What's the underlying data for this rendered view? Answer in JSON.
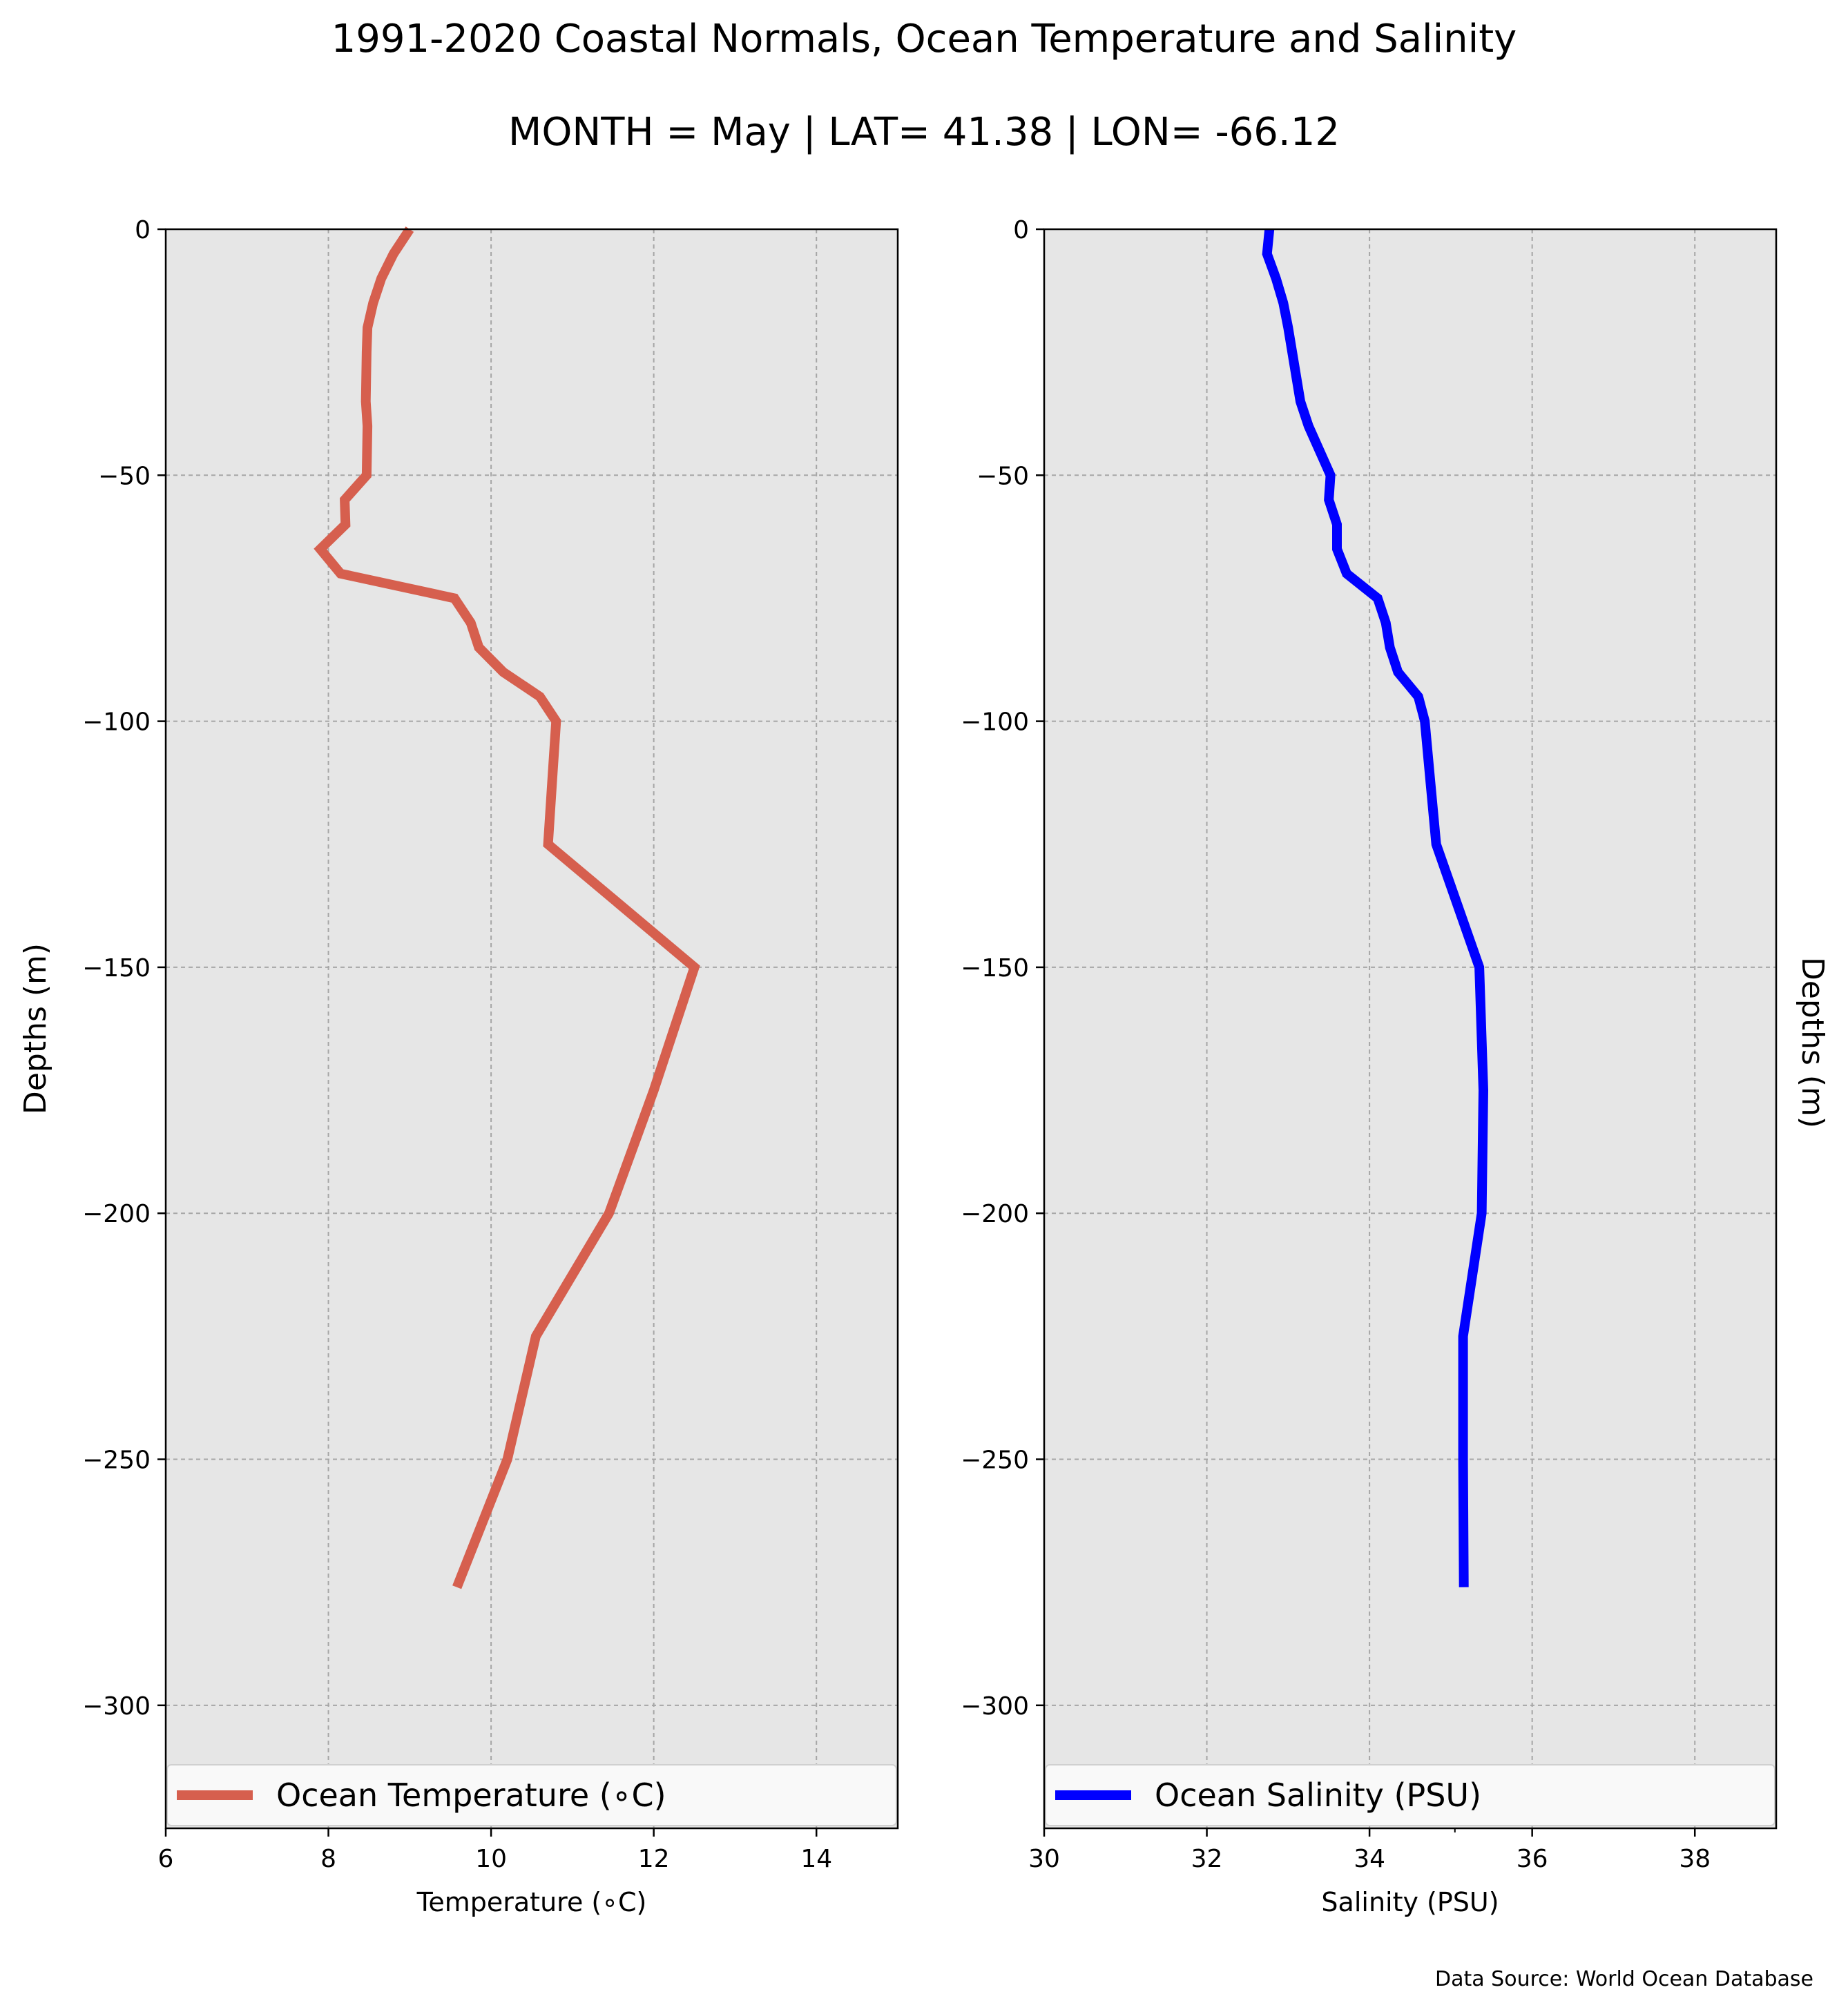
{
  "figure": {
    "title": "1991-2020 Coastal Normals, Ocean Temperature and Salinity",
    "subtitle": "MONTH = May | LAT= 41.38 | LON= -66.12",
    "source": "Data Source: World Ocean Database",
    "colors": {
      "background": "#ffffff",
      "plot_background": "#e6e6e6",
      "grid": "#a6a6a6",
      "temperature": "#d65f4e",
      "salinity": "#0000ff"
    }
  },
  "chart_data": [
    {
      "type": "line",
      "orientation": "profile",
      "xlabel": "Temperature (∘C)",
      "ylabel": "Depths (m)",
      "xlim": [
        6,
        15
      ],
      "ylim": [
        -325,
        0
      ],
      "xticks": [
        6,
        8,
        10,
        12,
        14
      ],
      "xtick_labels": [
        "6",
        "8",
        "10",
        "12",
        "14"
      ],
      "yticks": [
        0,
        -50,
        -100,
        -150,
        -200,
        -250,
        -300
      ],
      "ytick_labels": [
        "0",
        "−50",
        "−100",
        "−150",
        "−200",
        "−250",
        "−300"
      ],
      "grid": true,
      "legend": "bottom",
      "series": [
        {
          "name": "Ocean Temperature (∘C)",
          "color": "#d65f4e",
          "x": [
            9.0,
            8.8,
            8.65,
            8.55,
            8.48,
            8.47,
            8.46,
            8.48,
            8.47,
            8.2,
            8.21,
            7.9,
            8.15,
            9.55,
            9.75,
            9.85,
            10.15,
            10.6,
            10.8,
            10.75,
            10.7,
            12.5,
            12.0,
            11.45,
            10.55,
            10.2,
            9.58
          ],
          "y": [
            0,
            -5,
            -10,
            -15,
            -20,
            -25,
            -35,
            -40,
            -50,
            -55,
            -60,
            -65,
            -70,
            -75,
            -80,
            -85,
            -90,
            -95,
            -100,
            -112.5,
            -125,
            -150,
            -175,
            -200,
            -225,
            -250,
            -276
          ]
        }
      ]
    },
    {
      "type": "line",
      "orientation": "profile",
      "xlabel": "Salinity (PSU)",
      "ylabel": "Depths (m)",
      "xlim": [
        30,
        39
      ],
      "ylim": [
        -325,
        0
      ],
      "xticks": [
        30,
        32,
        34,
        36,
        38
      ],
      "xtick_labels": [
        "30",
        "32",
        "34",
        "36",
        "38"
      ],
      "yticks": [
        0,
        -50,
        -100,
        -150,
        -200,
        -250,
        -300
      ],
      "ytick_labels": [
        "0",
        "−50",
        "−100",
        "−150",
        "−200",
        "−250",
        "−300"
      ],
      "grid": true,
      "legend": "bottom",
      "series": [
        {
          "name": "Ocean Salinity (PSU)",
          "color": "#0000ff",
          "x": [
            32.77,
            32.74,
            32.85,
            32.94,
            33.0,
            33.05,
            33.15,
            33.25,
            33.52,
            33.5,
            33.6,
            33.6,
            33.72,
            34.1,
            34.2,
            34.25,
            34.35,
            34.6,
            34.68,
            34.75,
            34.82,
            35.35,
            35.4,
            35.38,
            35.15,
            35.15,
            35.16
          ],
          "y": [
            0,
            -5,
            -10,
            -15,
            -20,
            -25,
            -35,
            -40,
            -50,
            -55,
            -60,
            -65,
            -70,
            -75,
            -80,
            -85,
            -90,
            -95,
            -100,
            -112.5,
            -125,
            -150,
            -175,
            -200,
            -225,
            -250,
            -276
          ]
        }
      ]
    }
  ]
}
